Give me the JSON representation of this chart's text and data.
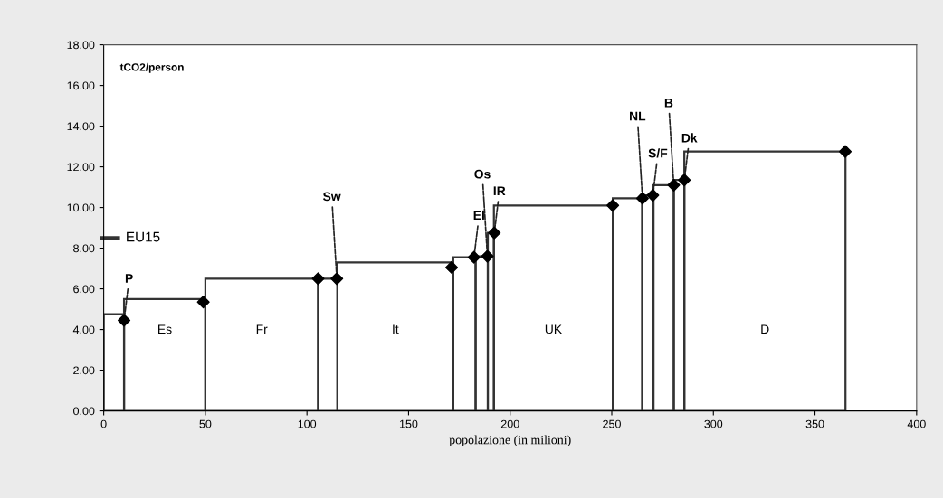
{
  "chart_data": {
    "type": "bar",
    "xlabel": "popolazione (in milioni)",
    "ylabel": "tCO2/person",
    "xlim": [
      0,
      400
    ],
    "xticks": [
      0,
      50,
      100,
      150,
      200,
      250,
      300,
      350,
      400
    ],
    "ylim": [
      0,
      18
    ],
    "yticks": [
      {
        "value": 0,
        "label": "0.00"
      },
      {
        "value": 2,
        "label": "2.00"
      },
      {
        "value": 4,
        "label": "4.00"
      },
      {
        "value": 6,
        "label": "6.00"
      },
      {
        "value": 8,
        "label": "8.00"
      },
      {
        "value": 10,
        "label": "10.00"
      },
      {
        "value": 12,
        "label": "12.00"
      },
      {
        "value": 14,
        "label": "14.00"
      },
      {
        "value": 16,
        "label": "16.00"
      },
      {
        "value": 18,
        "label": "18.00"
      }
    ],
    "series": [
      {
        "color": "#333333",
        "x": [
          5,
          30,
          77.75,
          110.25,
          143.5,
          177.5,
          186,
          190.5,
          221.25,
          257.75,
          267.75,
          275.5,
          283.1,
          325.35
        ],
        "values": [
          4.75,
          5.5,
          6.5,
          6.5,
          7.3,
          7.55,
          7.6,
          8.75,
          10.1,
          10.45,
          10.6,
          11.1,
          11.35,
          12.75
        ]
      },
      {
        "type": "scatter",
        "color": "#000000",
        "marker": "diamond",
        "x": [
          10,
          49,
          105.5,
          114.7,
          171.2,
          182.2,
          188.8,
          192.2,
          250.5,
          265.1,
          270.2,
          280.5,
          285.7,
          364.9
        ],
        "values": [
          4.45,
          5.35,
          6.5,
          6.5,
          7.05,
          7.55,
          7.6,
          8.75,
          10.1,
          10.45,
          10.6,
          11.1,
          11.35,
          12.75
        ]
      }
    ],
    "ref_lines": [
      {
        "axis": "y",
        "value": 8.5,
        "label": "EU15"
      }
    ],
    "annotations": [
      {
        "text": "P",
        "x": 10,
        "y": 4.45
      },
      "Es",
      "Fr",
      {
        "text": "Sw",
        "x": 114.7,
        "y": 6.5
      },
      "It",
      {
        "text": "El",
        "x": 182.2,
        "y": 7.55
      },
      {
        "text": "Os",
        "x": 188.8,
        "y": 7.6
      },
      {
        "text": "IR",
        "x": 192.2,
        "y": 8.75
      },
      "UK",
      {
        "text": "NL",
        "x": 265.1,
        "y": 10.45
      },
      {
        "text": "S/F",
        "x": 270.2,
        "y": 10.6
      },
      {
        "text": "B",
        "x": 280.5,
        "y": 11.1
      },
      {
        "text": "Dk",
        "x": 285.7,
        "y": 11.35
      },
      "D"
    ]
  }
}
